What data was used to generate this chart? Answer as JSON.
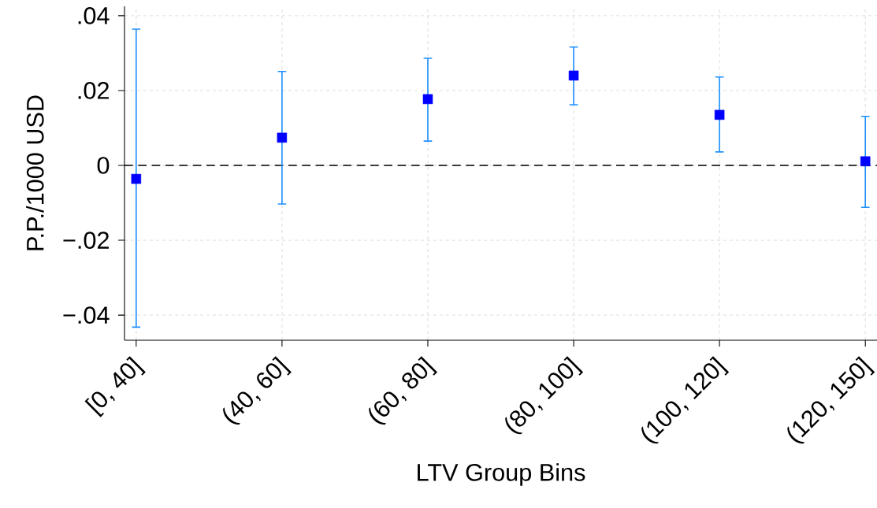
{
  "chart_data": {
    "type": "scatter",
    "xlabel": "LTV Group Bins",
    "ylabel": "P.P./1000 USD",
    "categories": [
      "[0, 40]",
      "(40, 60]",
      "(60, 80]",
      "(80, 100]",
      "(100, 120]",
      "(120, 150]"
    ],
    "series": [
      {
        "color": "#0000ff",
        "values": [
          -0.0036,
          0.0074,
          0.0177,
          0.024,
          0.0135,
          0.0011
        ],
        "errors": [
          [
            -0.0432,
            0.0364
          ],
          [
            -0.0103,
            0.0251
          ],
          [
            0.0065,
            0.0286
          ],
          [
            0.0162,
            0.0316
          ],
          [
            0.0036,
            0.0236
          ],
          [
            -0.0112,
            0.0131
          ]
        ]
      }
    ],
    "ylim": [
      -0.0467,
      0.0425
    ],
    "yticks": [
      {
        "value": -0.04,
        "label": "−.04"
      },
      {
        "value": -0.02,
        "label": "−.02"
      },
      {
        "value": 0,
        "label": "0"
      },
      {
        "value": 0.02,
        "label": ".02"
      },
      {
        "value": 0.04,
        "label": ".04"
      }
    ],
    "ref_lines": [
      {
        "axis": "y",
        "value": 0,
        "color": "#000000",
        "line_style": "dashed"
      }
    ],
    "grid": true,
    "marker": "square"
  }
}
